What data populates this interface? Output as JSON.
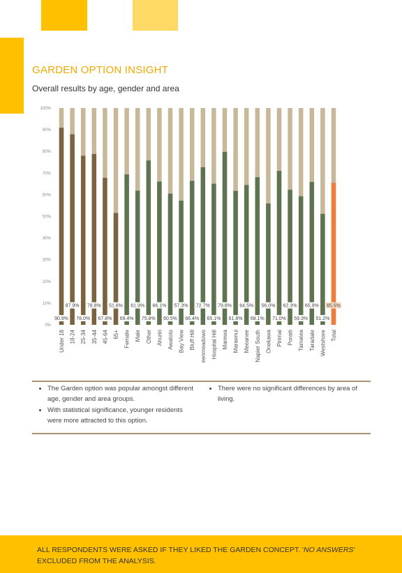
{
  "header": {
    "title": "GARDEN OPTION INSIGHT",
    "subtitle": "Overall results by age, gender and area"
  },
  "colors": {
    "accent": "#FFC000",
    "accent_light": "#FFD966",
    "title": "#F2A900",
    "bar_background": "#C8B89A",
    "age_bar": "#7B6240",
    "gender_area_bar": "#5E7350",
    "total_bar": "#F07C3C",
    "total_label_bg": "#FBDDC7"
  },
  "chart_data": {
    "type": "bar",
    "stacked_to_100": true,
    "ylim": [
      0,
      100
    ],
    "yticks": [
      "0%",
      "10%",
      "20%",
      "30%",
      "40%",
      "50%",
      "60%",
      "70%",
      "80%",
      "90%",
      "100%"
    ],
    "grid": false,
    "legend": "none",
    "categories": [
      "Under 18",
      "18-24",
      "25-34",
      "35-44",
      "45-64",
      "65+",
      "Female",
      "Male",
      "Other",
      "Ahuriri",
      "Awatoto",
      "Bay View",
      "Bluff Hill",
      "Greenmeadows",
      "Hospital Hill",
      "Marewa",
      "Maraenui",
      "Meeanee",
      "Napier South",
      "Onekawa",
      "Pirimai",
      "Poraiti",
      "Tamatea",
      "Taradale",
      "Westshore",
      "Total"
    ],
    "values": [
      90.9,
      87.9,
      78.0,
      78.8,
      67.8,
      51.6,
      69.4,
      61.9,
      75.8,
      66.1,
      60.5,
      57.3,
      66.4,
      72.7,
      65.1,
      79.8,
      61.8,
      64.5,
      68.1,
      56.0,
      71.0,
      62.3,
      59.3,
      65.9,
      51.2,
      65.5
    ],
    "value_labels": [
      "90.9%",
      "87.9%",
      "78.0%",
      "78.8%",
      "67.8%",
      "51.6%",
      "69.4%",
      "61.9%",
      "75.8%",
      "66.1%",
      "60.5%",
      "57.3%",
      "66.4%",
      "72.7%",
      "65.1%",
      "79.8%",
      "61.8%",
      "64.5%",
      "68.1%",
      "56.0%",
      "71.0%",
      "62.3%",
      "59.3%",
      "65.9%",
      "51.2%",
      "65.5%"
    ],
    "groups": [
      "age",
      "age",
      "age",
      "age",
      "age",
      "age",
      "gender",
      "gender",
      "gender",
      "area",
      "area",
      "area",
      "area",
      "area",
      "area",
      "area",
      "area",
      "area",
      "area",
      "area",
      "area",
      "area",
      "area",
      "area",
      "area",
      "total"
    ]
  },
  "notes": {
    "left": [
      "The Garden option was popular amongst different age, gender and area groups.",
      "With statistical significance, younger residents were more attracted to this option."
    ],
    "right": [
      "There were no significant differences by area of living."
    ]
  },
  "footer": {
    "text_prefix": "All respondents were asked if they liked the Garden concept. '",
    "text_em": "No answers",
    "text_suffix": "' excluded from the analysis."
  }
}
